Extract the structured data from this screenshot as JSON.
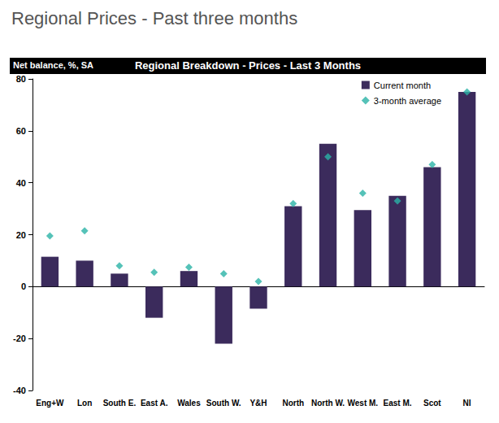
{
  "page_title": "Regional Prices - Past three months",
  "chart_data": {
    "type": "bar",
    "title": "Regional Breakdown - Prices - Last 3 Months",
    "ylabel": "Net balance, %, SA",
    "categories": [
      "Eng+W",
      "Lon",
      "South E.",
      "East A.",
      "Wales",
      "South W.",
      "Y&H",
      "North",
      "North W.",
      "West M.",
      "East M.",
      "Scot",
      "NI"
    ],
    "series": [
      {
        "name": "Current month",
        "type": "bar",
        "color": "#3b2b5c",
        "values": [
          11.5,
          10,
          5,
          -12,
          6,
          -22,
          -8.5,
          31,
          55,
          29.5,
          35,
          46,
          75
        ]
      },
      {
        "name": "3-month average",
        "type": "scatter",
        "marker": "diamond",
        "color": "#2ab3a6",
        "values": [
          19.5,
          21.5,
          8,
          5.5,
          7.5,
          5,
          2,
          32,
          50,
          36,
          33,
          47,
          75
        ]
      }
    ],
    "ylim": [
      -40,
      80
    ],
    "yticks": [
      -40,
      -20,
      0,
      20,
      40,
      60,
      80
    ],
    "grid": false,
    "legend": "upper right"
  }
}
